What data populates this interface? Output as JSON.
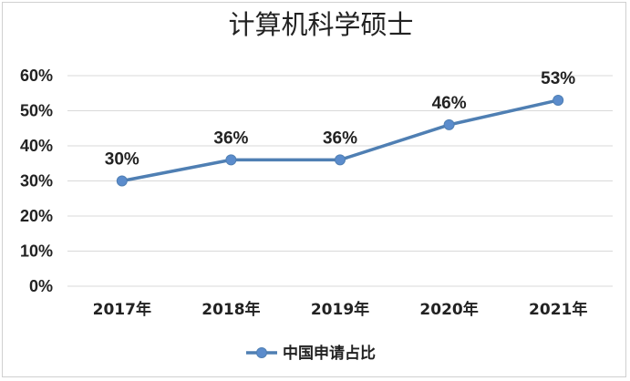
{
  "chart_data": {
    "type": "line",
    "title": "计算机科学硕士",
    "categories": [
      "2017年",
      "2018年",
      "2019年",
      "2020年",
      "2021年"
    ],
    "series": [
      {
        "name": "中国申请占比",
        "values": [
          30,
          36,
          36,
          46,
          53
        ],
        "data_labels": [
          "30%",
          "36%",
          "36%",
          "46%",
          "53%"
        ]
      }
    ],
    "ylim": [
      0,
      60
    ],
    "ytick_labels": [
      "0%",
      "10%",
      "20%",
      "30%",
      "40%",
      "50%",
      "60%"
    ],
    "xlabel": "",
    "ylabel": "",
    "grid": true,
    "legend": "bottom",
    "colors": {
      "line": "#4f7fb3",
      "marker": "#5b8ccc",
      "grid": "#d9d9d9",
      "text": "#222222"
    }
  }
}
